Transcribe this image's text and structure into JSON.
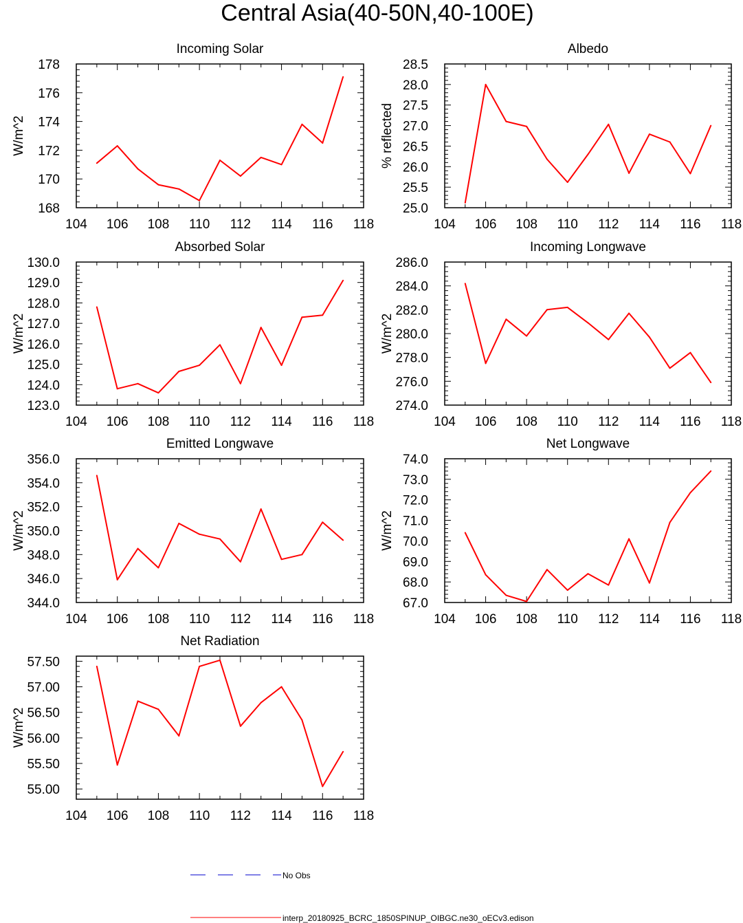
{
  "figure_title": "Central Asia(40-50N,40-100E)",
  "colors": {
    "series": "#ff0000",
    "obs": "#0000cc",
    "axis": "#000000"
  },
  "chart_data": [
    {
      "type": "line",
      "title": "Incoming Solar",
      "ylabel": "W/m^2",
      "xlim": [
        104,
        118
      ],
      "ylim": [
        168,
        178
      ],
      "xticks": [
        "104",
        "106",
        "108",
        "110",
        "112",
        "114",
        "116",
        "118"
      ],
      "yticks": [
        "168",
        "170",
        "172",
        "174",
        "176",
        "178"
      ],
      "x": [
        105,
        106,
        107,
        108,
        109,
        110,
        111,
        112,
        113,
        114,
        115,
        116,
        117
      ],
      "values": [
        171.1,
        172.3,
        170.7,
        169.6,
        169.3,
        168.5,
        171.3,
        170.2,
        171.5,
        171.0,
        173.8,
        172.5,
        177.1
      ]
    },
    {
      "type": "line",
      "title": "Albedo",
      "ylabel": "% reflected",
      "xlim": [
        104,
        118
      ],
      "ylim": [
        25.0,
        28.5
      ],
      "xticks": [
        "104",
        "106",
        "108",
        "110",
        "112",
        "114",
        "116",
        "118"
      ],
      "yticks": [
        "25.0",
        "25.5",
        "26.0",
        "26.5",
        "27.0",
        "27.5",
        "28.0",
        "28.5"
      ],
      "x": [
        105,
        106,
        107,
        108,
        109,
        110,
        111,
        112,
        113,
        114,
        115,
        116,
        117
      ],
      "values": [
        25.12,
        28.0,
        27.1,
        26.98,
        26.18,
        25.62,
        26.3,
        27.03,
        25.84,
        26.79,
        26.6,
        25.83,
        27.0
      ]
    },
    {
      "type": "line",
      "title": "Absorbed Solar",
      "ylabel": "W/m^2",
      "xlim": [
        104,
        118
      ],
      "ylim": [
        123.0,
        130.0
      ],
      "xticks": [
        "104",
        "106",
        "108",
        "110",
        "112",
        "114",
        "116",
        "118"
      ],
      "yticks": [
        "123.0",
        "124.0",
        "125.0",
        "126.0",
        "127.0",
        "128.0",
        "129.0",
        "130.0"
      ],
      "x": [
        105,
        106,
        107,
        108,
        109,
        110,
        111,
        112,
        113,
        114,
        115,
        116,
        117
      ],
      "values": [
        127.8,
        123.8,
        124.05,
        123.6,
        124.65,
        124.95,
        125.95,
        124.05,
        126.8,
        124.95,
        127.3,
        127.4,
        129.1
      ]
    },
    {
      "type": "line",
      "title": "Incoming Longwave",
      "ylabel": "W/m^2",
      "xlim": [
        104,
        118
      ],
      "ylim": [
        274.0,
        286.0
      ],
      "xticks": [
        "104",
        "106",
        "108",
        "110",
        "112",
        "114",
        "116",
        "118"
      ],
      "yticks": [
        "274.0",
        "276.0",
        "278.0",
        "280.0",
        "282.0",
        "284.0",
        "286.0"
      ],
      "x": [
        105,
        106,
        107,
        108,
        109,
        110,
        111,
        112,
        113,
        114,
        115,
        116,
        117
      ],
      "values": [
        284.2,
        277.5,
        281.2,
        279.8,
        282.0,
        282.2,
        280.9,
        279.5,
        281.7,
        279.7,
        277.1,
        278.4,
        275.9
      ]
    },
    {
      "type": "line",
      "title": "Emitted Longwave",
      "ylabel": "W/m^2",
      "xlim": [
        104,
        118
      ],
      "ylim": [
        344.0,
        356.0
      ],
      "xticks": [
        "104",
        "106",
        "108",
        "110",
        "112",
        "114",
        "116",
        "118"
      ],
      "yticks": [
        "344.0",
        "346.0",
        "348.0",
        "350.0",
        "352.0",
        "354.0",
        "356.0"
      ],
      "x": [
        105,
        106,
        107,
        108,
        109,
        110,
        111,
        112,
        113,
        114,
        115,
        116,
        117
      ],
      "values": [
        354.6,
        345.9,
        348.5,
        346.9,
        350.6,
        349.7,
        349.3,
        347.4,
        351.8,
        347.6,
        348.0,
        350.7,
        349.2
      ]
    },
    {
      "type": "line",
      "title": "Net Longwave",
      "ylabel": "W/m^2",
      "xlim": [
        104,
        118
      ],
      "ylim": [
        67.0,
        74.0
      ],
      "xticks": [
        "104",
        "106",
        "108",
        "110",
        "112",
        "114",
        "116",
        "118"
      ],
      "yticks": [
        "67.0",
        "68.0",
        "69.0",
        "70.0",
        "71.0",
        "72.0",
        "73.0",
        "74.0"
      ],
      "x": [
        105,
        106,
        107,
        108,
        109,
        110,
        111,
        112,
        113,
        114,
        115,
        116,
        117
      ],
      "values": [
        70.4,
        68.35,
        67.35,
        67.05,
        68.6,
        67.6,
        68.4,
        67.85,
        70.1,
        67.95,
        70.9,
        72.35,
        73.4
      ]
    },
    {
      "type": "line",
      "title": "Net Radiation",
      "ylabel": "W/m^2",
      "xlim": [
        104,
        118
      ],
      "ylim": [
        54.8,
        57.6
      ],
      "xticks": [
        "104",
        "106",
        "108",
        "110",
        "112",
        "114",
        "116",
        "118"
      ],
      "yticks": [
        "55.00",
        "55.50",
        "56.00",
        "56.50",
        "57.00",
        "57.50"
      ],
      "x": [
        105,
        106,
        107,
        108,
        109,
        110,
        111,
        112,
        113,
        114,
        115,
        116,
        117
      ],
      "values": [
        57.4,
        55.47,
        56.72,
        56.56,
        56.04,
        57.4,
        57.52,
        56.23,
        56.69,
        57.0,
        56.35,
        55.05,
        55.73
      ]
    }
  ],
  "legend": {
    "obs_label": "No Obs",
    "model_label": "interp_20180925_BCRC_1850SPINUP_OIBGC.ne30_oECv3.edison"
  }
}
